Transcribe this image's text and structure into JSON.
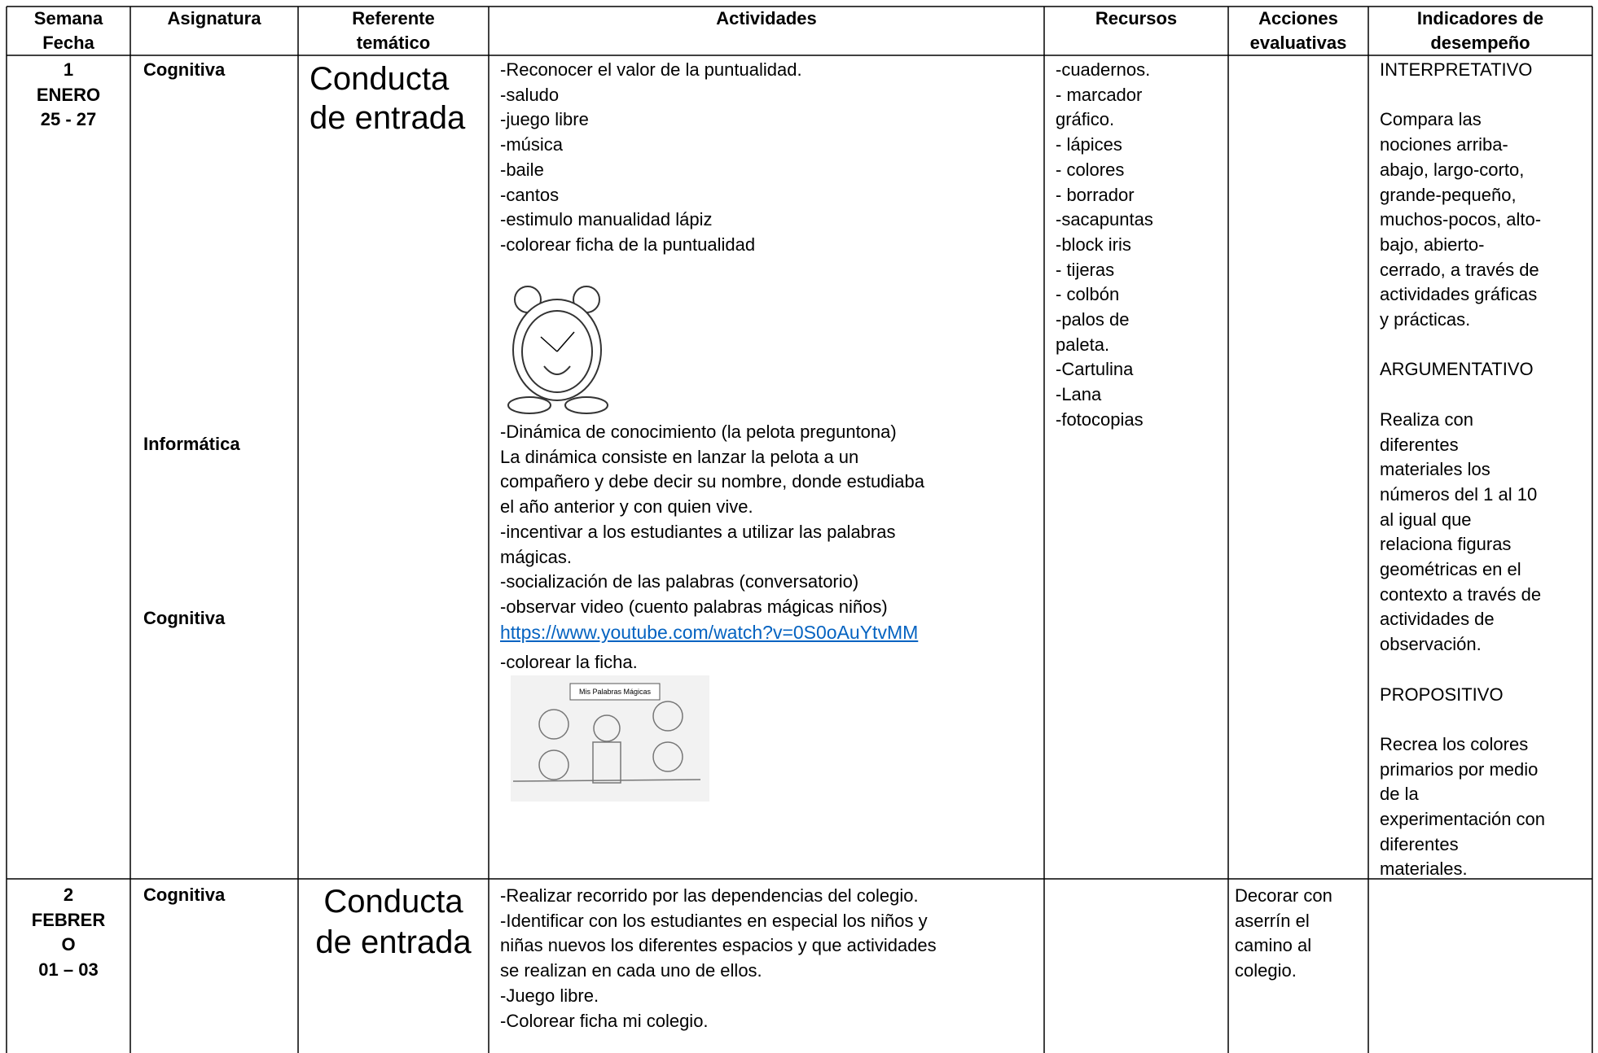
{
  "header": {
    "columns": [
      [
        "Semana",
        "Fecha"
      ],
      [
        "Asignatura"
      ],
      [
        "Referente",
        "temático"
      ],
      [
        "Actividades"
      ],
      [
        "Recursos"
      ],
      [
        "Acciones",
        "evaluativas"
      ],
      [
        "Indicadores de",
        "desempeño"
      ]
    ]
  },
  "rows": [
    {
      "week": [
        "1",
        "ENERO",
        "25 - 27"
      ],
      "subjects": [
        "Cognitiva",
        "Informática",
        "Cognitiva"
      ],
      "reference": [
        "Conducta",
        "de entrada"
      ],
      "activities_intro": [
        "-Reconocer el valor de la puntualidad.",
        "-saludo",
        "-juego libre",
        "-música",
        "-baile",
        "-cantos",
        "-estimulo manualidad lápiz",
        "-colorear ficha de la puntualidad"
      ],
      "activities_main": [
        "-Dinámica de conocimiento (la pelota preguntona)",
        "La dinámica consiste en lanzar la pelota a un",
        "compañero y debe decir su nombre, donde estudiaba",
        "el año anterior y con quien vive.",
        "-incentivar a los estudiantes a utilizar las palabras",
        "mágicas.",
        "-socialización de las palabras (conversatorio)",
        "-observar video (cuento palabras mágicas niños)"
      ],
      "link": "https://www.youtube.com/watch?v=0S0oAuYtvMM",
      "activities_end": "-colorear la ficha.",
      "image_caption": "Mis Palabras Mágicas",
      "resources": [
        "-cuadernos.",
        "- marcador",
        "gráfico.",
        "- lápices",
        "- colores",
        "- borrador",
        "-sacapuntas",
        "-block iris",
        "- tijeras",
        "- colbón",
        "-palos de",
        "paleta.",
        "-Cartulina",
        "-Lana",
        "-fotocopias"
      ],
      "indicators": [
        [
          "INTERPRETATIVO"
        ],
        [
          "Compara las",
          "nociones arriba-",
          "abajo, largo-corto,",
          "grande-pequeño,",
          "muchos-pocos, alto-",
          "bajo, abierto-",
          "cerrado, a través de",
          "actividades gráficas",
          "y prácticas."
        ],
        [
          "ARGUMENTATIVO"
        ],
        [
          "Realiza con",
          "diferentes",
          "materiales los",
          "números del 1 al 10",
          "al igual que",
          "relaciona figuras",
          "geométricas en el",
          "contexto a través de",
          "actividades de",
          "observación."
        ],
        [
          "PROPOSITIVO"
        ],
        [
          "Recrea los colores",
          "primarios por medio",
          "de la",
          "experimentación con",
          "diferentes",
          "materiales."
        ]
      ]
    },
    {
      "week": [
        "2",
        "FEBRER",
        "O",
        "01 – 03"
      ],
      "subjects": [
        "Cognitiva"
      ],
      "reference": [
        "Conducta",
        "de entrada"
      ],
      "activities_intro": [
        "-Realizar recorrido por las dependencias del colegio.",
        "-Identificar con los estudiantes en especial los niños y",
        "niñas nuevos los diferentes espacios y que actividades",
        "se realizan en cada uno de ellos.",
        "-Juego libre.",
        "-Colorear ficha mi colegio."
      ],
      "evaluation": [
        "Decorar con",
        "aserrín el",
        "camino al",
        "colegio."
      ]
    }
  ]
}
